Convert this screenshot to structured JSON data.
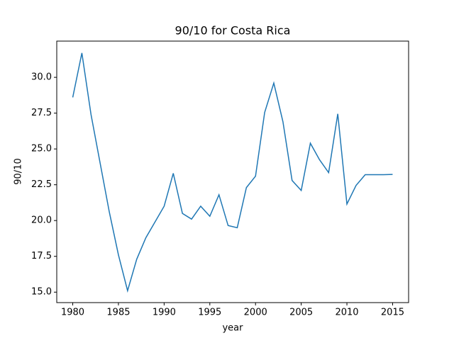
{
  "chart_data": {
    "type": "line",
    "title": "90/10 for Costa Rica",
    "x_label": "year",
    "y_label": "90/10",
    "x": [
      1980,
      1981,
      1982,
      1983,
      1984,
      1985,
      1986,
      1987,
      1988,
      1989,
      1990,
      1991,
      1992,
      1993,
      1994,
      1995,
      1996,
      1997,
      1998,
      1999,
      2000,
      2001,
      2002,
      2003,
      2004,
      2005,
      2006,
      2007,
      2008,
      2009,
      2010,
      2011,
      2012,
      2013,
      2014,
      2015
    ],
    "series": [
      {
        "name": "90/10",
        "color": "#1f77b4",
        "values": [
          28.6,
          31.7,
          27.4,
          24.0,
          20.6,
          17.6,
          15.1,
          17.3,
          18.8,
          19.9,
          21.0,
          23.3,
          20.5,
          20.1,
          21.0,
          20.3,
          21.8,
          19.65,
          19.5,
          22.3,
          23.1,
          27.55,
          29.6,
          26.9,
          22.8,
          22.1,
          25.4,
          24.25,
          23.35,
          27.45,
          21.15,
          22.45,
          23.2,
          23.2,
          23.2,
          23.22
        ]
      }
    ],
    "xlim": [
      1978.25,
      2016.75
    ],
    "xticks": [
      1980,
      1985,
      1990,
      1995,
      2000,
      2005,
      2010,
      2015
    ],
    "ylim": [
      14.27,
      32.53
    ],
    "yticks": [
      {
        "value": 15,
        "label": "15.0"
      },
      {
        "value": 17.5,
        "label": "17.5"
      },
      {
        "value": 20,
        "label": "20.0"
      },
      {
        "value": 22.5,
        "label": "22.5"
      },
      {
        "value": 25,
        "label": "25.0"
      },
      {
        "value": 27.5,
        "label": "27.5"
      },
      {
        "value": 30,
        "label": "30.0"
      }
    ],
    "grid": false
  }
}
